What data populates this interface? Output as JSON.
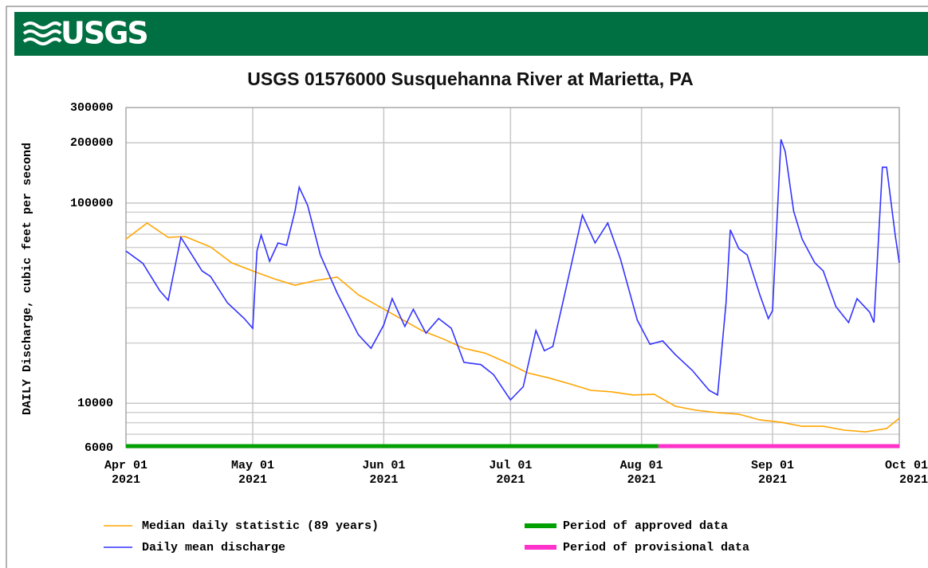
{
  "header": {
    "logo": "USGS"
  },
  "chart_data": {
    "type": "line",
    "title": "USGS 01576000 Susquehanna River at Marietta, PA",
    "ylabel": "DAILY Discharge, cubic feet per second",
    "log_y": true,
    "grid": true,
    "ylim": [
      6000,
      300000
    ],
    "yticks": [
      6000,
      10000,
      100000,
      200000,
      300000
    ],
    "minor_yticks": [
      7000,
      8000,
      9000,
      20000,
      30000,
      40000,
      50000,
      60000,
      70000,
      80000,
      90000
    ],
    "xlim": [
      "2021-04-01",
      "2021-10-01"
    ],
    "xticks": [
      {
        "value": "2021-04-01",
        "label": "Apr 01\n2021"
      },
      {
        "value": "2021-05-01",
        "label": "May 01\n2021"
      },
      {
        "value": "2021-06-01",
        "label": "Jun 01\n2021"
      },
      {
        "value": "2021-07-01",
        "label": "Jul 01\n2021"
      },
      {
        "value": "2021-08-01",
        "label": "Aug 01\n2021"
      },
      {
        "value": "2021-09-01",
        "label": "Sep 01\n2021"
      },
      {
        "value": "2021-10-01",
        "label": "Oct 01\n2021"
      }
    ],
    "series": [
      {
        "name": "Median daily statistic (89 years)",
        "color": "#ffa500",
        "x": [
          "2021-04-01",
          "2021-04-06",
          "2021-04-11",
          "2021-04-15",
          "2021-04-21",
          "2021-04-26",
          "2021-05-01",
          "2021-05-06",
          "2021-05-11",
          "2021-05-16",
          "2021-05-21",
          "2021-05-26",
          "2021-05-31",
          "2021-06-05",
          "2021-06-10",
          "2021-06-15",
          "2021-06-20",
          "2021-06-25",
          "2021-06-30",
          "2021-07-05",
          "2021-07-10",
          "2021-07-15",
          "2021-07-20",
          "2021-07-25",
          "2021-07-30",
          "2021-08-04",
          "2021-08-09",
          "2021-08-14",
          "2021-08-19",
          "2021-08-24",
          "2021-08-29",
          "2021-09-03",
          "2021-09-08",
          "2021-09-13",
          "2021-09-18",
          "2021-09-23",
          "2021-09-28",
          "2021-10-01"
        ],
        "values": [
          66100,
          79500,
          67400,
          68000,
          60400,
          50300,
          45800,
          41900,
          38900,
          41100,
          42700,
          34800,
          30400,
          26500,
          23100,
          21000,
          18800,
          17800,
          16000,
          14200,
          13400,
          12500,
          11600,
          11400,
          11000,
          11100,
          9660,
          9230,
          8980,
          8820,
          8260,
          8040,
          7680,
          7680,
          7340,
          7200,
          7480,
          8420
        ]
      },
      {
        "name": "Daily mean discharge",
        "color": "#3333ff",
        "x": [
          "2021-04-01",
          "2021-04-05",
          "2021-04-09",
          "2021-04-11",
          "2021-04-14",
          "2021-04-19",
          "2021-04-21",
          "2021-04-25",
          "2021-04-29",
          "2021-05-01",
          "2021-05-02",
          "2021-05-03",
          "2021-05-05",
          "2021-05-07",
          "2021-05-09",
          "2021-05-11",
          "2021-05-12",
          "2021-05-14",
          "2021-05-17",
          "2021-05-21",
          "2021-05-26",
          "2021-05-29",
          "2021-06-01",
          "2021-06-03",
          "2021-06-06",
          "2021-06-08",
          "2021-06-11",
          "2021-06-14",
          "2021-06-17",
          "2021-06-20",
          "2021-06-24",
          "2021-06-27",
          "2021-07-01",
          "2021-07-04",
          "2021-07-07",
          "2021-07-09",
          "2021-07-11",
          "2021-07-14",
          "2021-07-18",
          "2021-07-21",
          "2021-07-24",
          "2021-07-27",
          "2021-07-31",
          "2021-08-03",
          "2021-08-06",
          "2021-08-09",
          "2021-08-13",
          "2021-08-17",
          "2021-08-19",
          "2021-08-21",
          "2021-08-22",
          "2021-08-24",
          "2021-08-26",
          "2021-08-29",
          "2021-08-31",
          "2021-09-01",
          "2021-09-03",
          "2021-09-04",
          "2021-09-06",
          "2021-09-08",
          "2021-09-11",
          "2021-09-13",
          "2021-09-16",
          "2021-09-19",
          "2021-09-21",
          "2021-09-24",
          "2021-09-25",
          "2021-09-27",
          "2021-09-28",
          "2021-09-30",
          "2021-10-01"
        ],
        "values": [
          57600,
          50000,
          36500,
          32700,
          67400,
          45800,
          43000,
          31800,
          26500,
          23700,
          57600,
          69200,
          51200,
          63200,
          61500,
          91100,
          120000,
          97300,
          55100,
          35500,
          22000,
          18800,
          24600,
          33300,
          24200,
          29500,
          22400,
          26500,
          23700,
          16000,
          15600,
          13900,
          10400,
          12100,
          23100,
          18300,
          19200,
          36500,
          87100,
          63200,
          79500,
          52600,
          26000,
          19700,
          20500,
          17500,
          14600,
          11600,
          11000,
          31800,
          73600,
          59300,
          55100,
          34800,
          26500,
          29000,
          208000,
          181000,
          91100,
          66100,
          50300,
          45800,
          30400,
          25300,
          33300,
          28500,
          25300,
          151000,
          151000,
          70000,
          50300
        ]
      }
    ],
    "periods": [
      {
        "name": "Period of approved data",
        "color": "#00a000",
        "start": "2021-04-01",
        "end": "2021-08-05"
      },
      {
        "name": "Period of provisional data",
        "color": "#ff33cc",
        "start": "2021-08-05",
        "end": "2021-10-01"
      }
    ]
  }
}
